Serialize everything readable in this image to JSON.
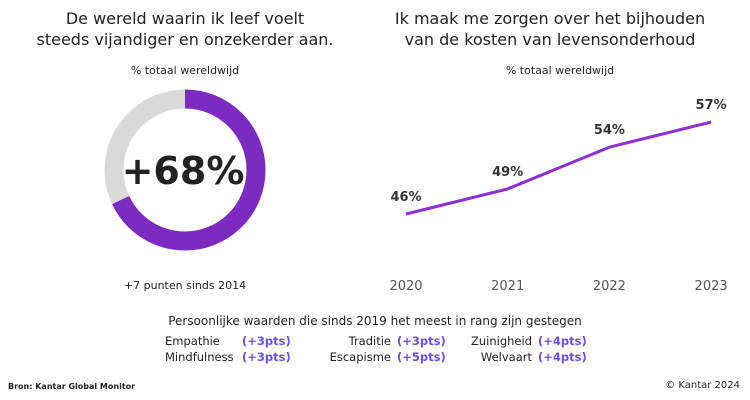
{
  "left": {
    "title_line1": "De wereld waarin ik leef voelt",
    "title_line2": "steeds vijandiger en onzekerder aan.",
    "subtitle": "% totaal wereldwijd",
    "footnote": "+7 punten sinds 2014"
  },
  "right": {
    "title_line1": "Ik maak me zorgen over het bijhouden",
    "title_line2": "van de kosten van levensonderhoud",
    "subtitle": "% totaal wereldwijd"
  },
  "chart_data": [
    {
      "type": "pie",
      "variant": "donut",
      "center_label": "+68%",
      "values": [
        68,
        32
      ],
      "colors": [
        "#7d2ac0",
        "#d9d9d9"
      ]
    },
    {
      "type": "line",
      "categories": [
        "2020",
        "2021",
        "2022",
        "2023"
      ],
      "values": [
        46,
        49,
        54,
        57
      ],
      "data_labels": [
        "46%",
        "49%",
        "54%",
        "57%"
      ],
      "color": "#8b2fd6",
      "grid": false
    }
  ],
  "values_section": {
    "title": "Persoonlijke waarden die sinds 2019 het meest in rang zijn gestegen",
    "items": [
      {
        "label": "Empathie",
        "change": "(+3pts)"
      },
      {
        "label": "Traditie",
        "change": "(+3pts)"
      },
      {
        "label": "Zuinigheid",
        "change": "(+4pts)"
      },
      {
        "label": "Mindfulness",
        "change": "(+3pts)"
      },
      {
        "label": "Escapisme",
        "change": "(+5pts)"
      },
      {
        "label": "Welvaart",
        "change": "(+4pts)"
      }
    ]
  },
  "footer": {
    "source": "Bron: Kantar Global Monitor",
    "copyright": "© Kantar 2024"
  }
}
